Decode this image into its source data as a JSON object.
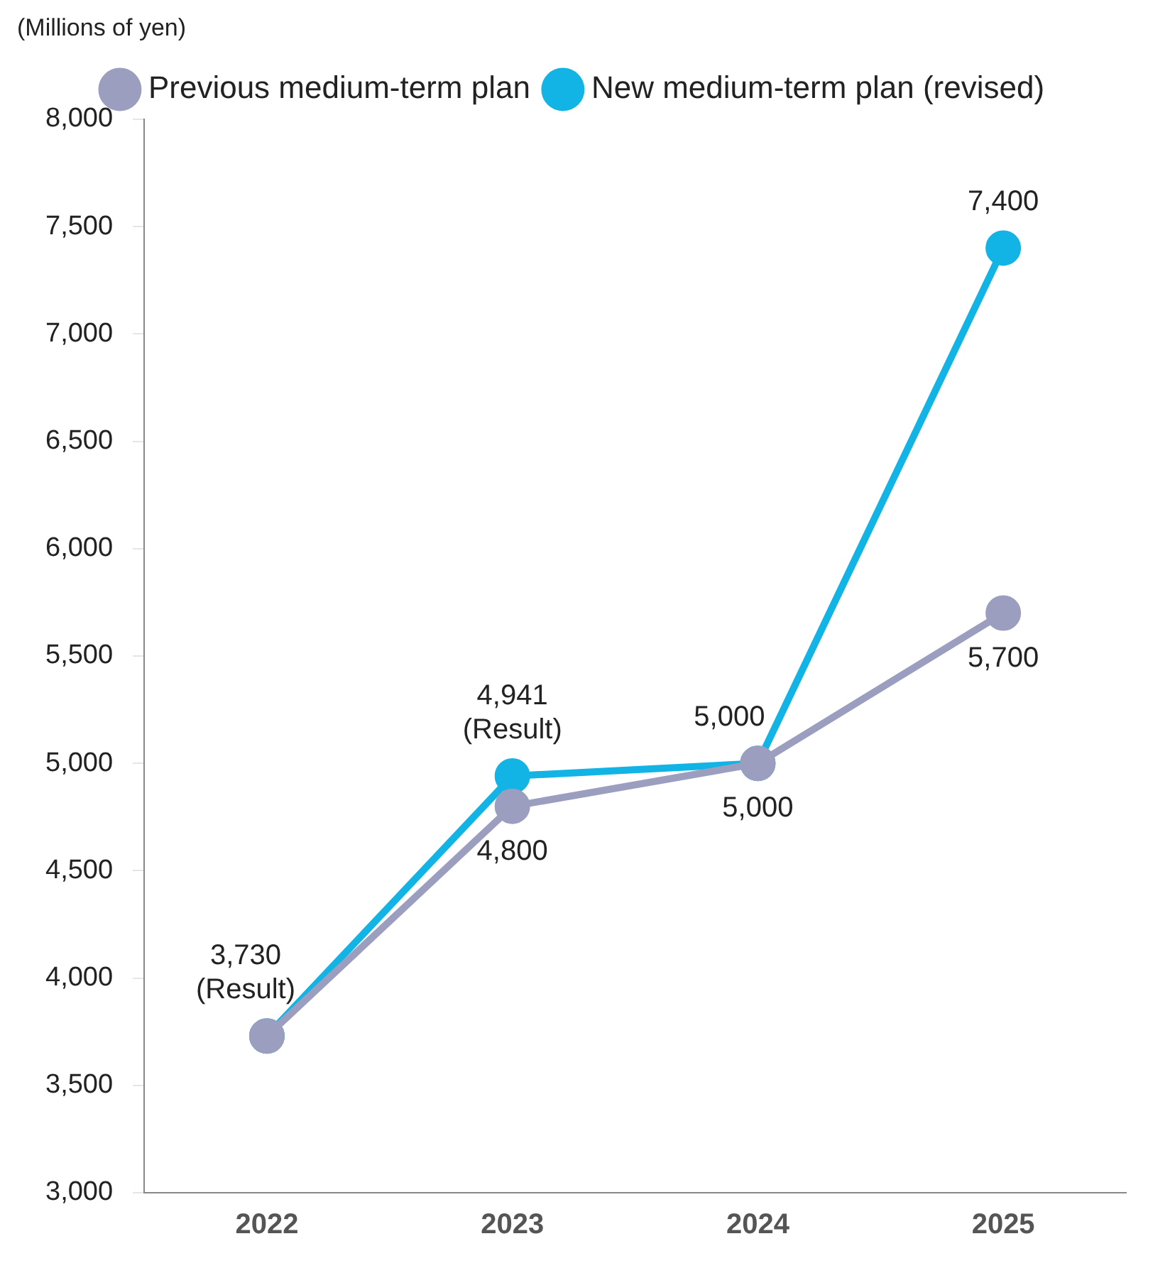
{
  "chart_data": {
    "type": "line",
    "ylabel": "(Millions of yen)",
    "categories": [
      "2022",
      "2023",
      "2024",
      "2025"
    ],
    "series": [
      {
        "name": "Previous medium-term plan",
        "color": "#9c9ebf",
        "values": [
          3730,
          4800,
          5000,
          5700
        ],
        "value_labels": [
          null,
          "4,800",
          "5,000",
          "5,700"
        ]
      },
      {
        "name": "New medium-term plan (revised)",
        "color": "#12b4e6",
        "values": [
          3730,
          4941,
          5000,
          7400
        ],
        "value_labels": [
          "3,730\n(Result)",
          "4,941\n(Result)",
          "5,000",
          "7,400"
        ]
      }
    ],
    "ylim": [
      3000,
      8000
    ],
    "yticks": [
      {
        "value": 3000,
        "label": "3,000"
      },
      {
        "value": 3500,
        "label": "3,500"
      },
      {
        "value": 4000,
        "label": "4,000"
      },
      {
        "value": 4500,
        "label": "4,500"
      },
      {
        "value": 5000,
        "label": "5,000"
      },
      {
        "value": 5500,
        "label": "5,500"
      },
      {
        "value": 6000,
        "label": "6,000"
      },
      {
        "value": 6500,
        "label": "6,500"
      },
      {
        "value": 7000,
        "label": "7,000"
      },
      {
        "value": 7500,
        "label": "7,500"
      },
      {
        "value": 8000,
        "label": "8,000"
      }
    ],
    "grid": false,
    "legend": "top",
    "marker": "circle",
    "line_style": "solid"
  }
}
